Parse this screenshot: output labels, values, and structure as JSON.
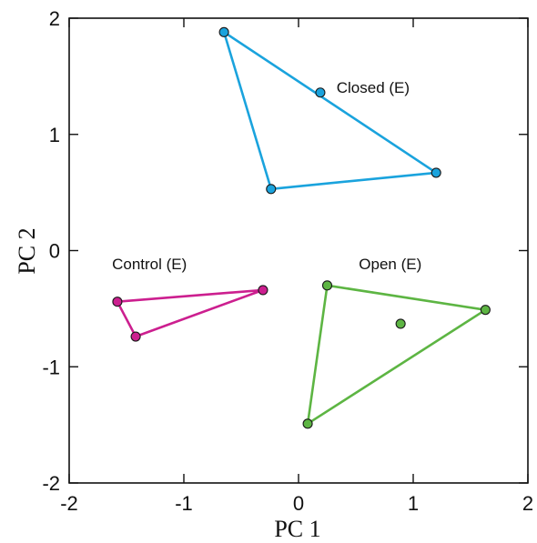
{
  "chart_data": {
    "type": "scatter",
    "xlabel": "PC 1",
    "ylabel": "PC 2",
    "xlim": [
      -2,
      2
    ],
    "ylim": [
      -2,
      2
    ],
    "x_ticks": [
      {
        "value": -2,
        "label": "-2"
      },
      {
        "value": -1,
        "label": "-1"
      },
      {
        "value": 0,
        "label": "0"
      },
      {
        "value": 1,
        "label": "1"
      },
      {
        "value": 2,
        "label": "2"
      }
    ],
    "y_ticks": [
      {
        "value": -2,
        "label": "-2"
      },
      {
        "value": -1,
        "label": "-1"
      },
      {
        "value": 0,
        "label": "0"
      },
      {
        "value": 1,
        "label": "1"
      },
      {
        "value": 2,
        "label": "2"
      }
    ],
    "grid": false,
    "series": [
      {
        "name": "Closed (E)",
        "color": "#1aa3dd",
        "label_anchor": {
          "x": 0.65,
          "y": 1.36
        },
        "hull": [
          [
            -0.65,
            1.88
          ],
          [
            1.2,
            0.67
          ],
          [
            -0.24,
            0.53
          ]
        ],
        "points": [
          [
            -0.65,
            1.88
          ],
          [
            0.19,
            1.36
          ],
          [
            1.2,
            0.67
          ],
          [
            -0.24,
            0.53
          ]
        ]
      },
      {
        "name": "Control (E)",
        "color": "#cc1f8f",
        "label_anchor": {
          "x": -1.3,
          "y": -0.16
        },
        "hull": [
          [
            -1.58,
            -0.44
          ],
          [
            -0.31,
            -0.34
          ],
          [
            -1.42,
            -0.74
          ]
        ],
        "points": [
          [
            -1.58,
            -0.44
          ],
          [
            -0.31,
            -0.34
          ],
          [
            -1.42,
            -0.74
          ]
        ]
      },
      {
        "name": "Open (E)",
        "color": "#5db543",
        "label_anchor": {
          "x": 0.8,
          "y": -0.16
        },
        "hull": [
          [
            0.25,
            -0.3
          ],
          [
            1.63,
            -0.51
          ],
          [
            0.08,
            -1.49
          ]
        ],
        "points": [
          [
            0.25,
            -0.3
          ],
          [
            1.63,
            -0.51
          ],
          [
            0.89,
            -0.63
          ],
          [
            0.08,
            -1.49
          ]
        ]
      }
    ]
  }
}
